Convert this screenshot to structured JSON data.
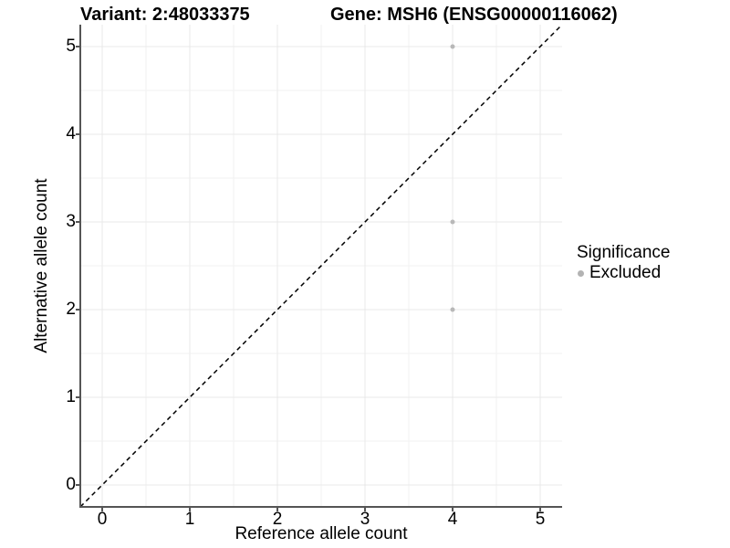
{
  "header": {
    "title_left": "Variant: 2:48033375",
    "title_right": "Gene: MSH6 (ENSG00000116062)"
  },
  "chart_data": {
    "type": "scatter",
    "title_left": "Variant: 2:48033375",
    "title_right": "Gene: MSH6 (ENSG00000116062)",
    "xlabel": "Reference allele count",
    "ylabel": "Alternative allele count",
    "xlim": [
      -0.25,
      5.25
    ],
    "ylim": [
      -0.25,
      5.25
    ],
    "xticks": [
      0,
      1,
      2,
      3,
      4,
      5
    ],
    "yticks": [
      0,
      1,
      2,
      3,
      4,
      5
    ],
    "minor_ticks": [
      0.5,
      1.5,
      2.5,
      3.5,
      4.5
    ],
    "grid": true,
    "reference_line": {
      "type": "identity",
      "style": "dashed",
      "color": "#000000",
      "dash": "5 4",
      "width": 1.5
    },
    "series": [
      {
        "name": "Excluded",
        "color": "#b8b8b8",
        "point_radius": 2.5,
        "points": [
          {
            "x": 4,
            "y": 5
          },
          {
            "x": 4,
            "y": 3
          },
          {
            "x": 4,
            "y": 2
          }
        ]
      }
    ],
    "legend": {
      "title": "Significance",
      "position": "right",
      "items": [
        {
          "label": "Excluded",
          "color": "#b3b3b3"
        }
      ]
    }
  },
  "colors": {
    "background": "#ffffff",
    "grid_major": "#e9e9e9",
    "grid_minor": "#f2f2f2",
    "axis": "#555555",
    "text": "#000000"
  }
}
